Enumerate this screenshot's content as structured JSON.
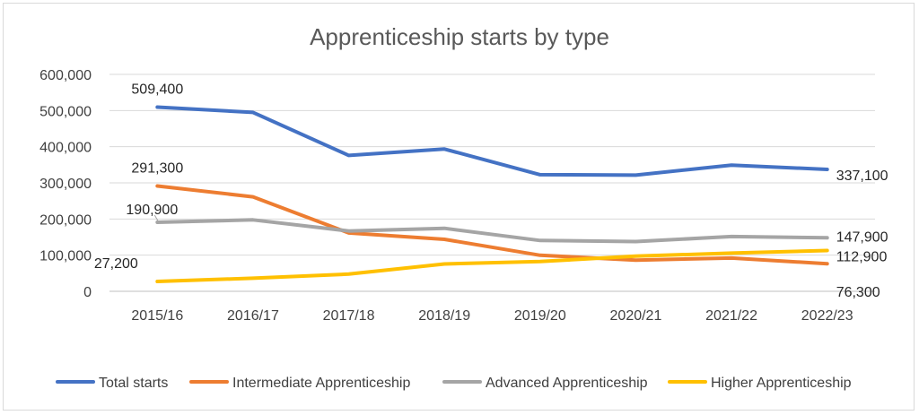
{
  "chart_data": {
    "type": "line",
    "title": "Apprenticeship starts by type",
    "xlabel": "",
    "ylabel": "",
    "categories": [
      "2015/16",
      "2016/17",
      "2017/18",
      "2018/19",
      "2019/20",
      "2020/21",
      "2021/22",
      "2022/23"
    ],
    "ylim": [
      0,
      600000
    ],
    "yticks": [
      0,
      100000,
      200000,
      300000,
      400000,
      500000,
      600000
    ],
    "ytick_labels": [
      "0",
      "100,000",
      "200,000",
      "300,000",
      "400,000",
      "500,000",
      "600,000"
    ],
    "grid": true,
    "legend_position": "bottom",
    "series": [
      {
        "name": "Total starts",
        "color": "#4472C4",
        "values": [
          509400,
          494900,
          375800,
          393400,
          322500,
          321400,
          349200,
          337100
        ],
        "labels": {
          "0": "509,400",
          "7": "337,100"
        }
      },
      {
        "name": "Intermediate Apprenticeship",
        "color": "#ED7D31",
        "values": [
          291300,
          261200,
          161400,
          143800,
          99700,
          86400,
          91900,
          76300
        ],
        "labels": {
          "0": "291,300",
          "7": "76,300"
        }
      },
      {
        "name": "Advanced Apprenticeship",
        "color": "#A5A5A5",
        "values": [
          190900,
          197500,
          166800,
          174200,
          140500,
          137700,
          151500,
          147900
        ],
        "labels": {
          "0": "190,900",
          "7": "147,900"
        }
      },
      {
        "name": "Higher Apprenticeship",
        "color": "#FFC000",
        "values": [
          27200,
          36300,
          47700,
          75500,
          82300,
          97300,
          105700,
          112900
        ],
        "labels": {
          "0": "27,200",
          "7": "112,900"
        }
      }
    ]
  }
}
